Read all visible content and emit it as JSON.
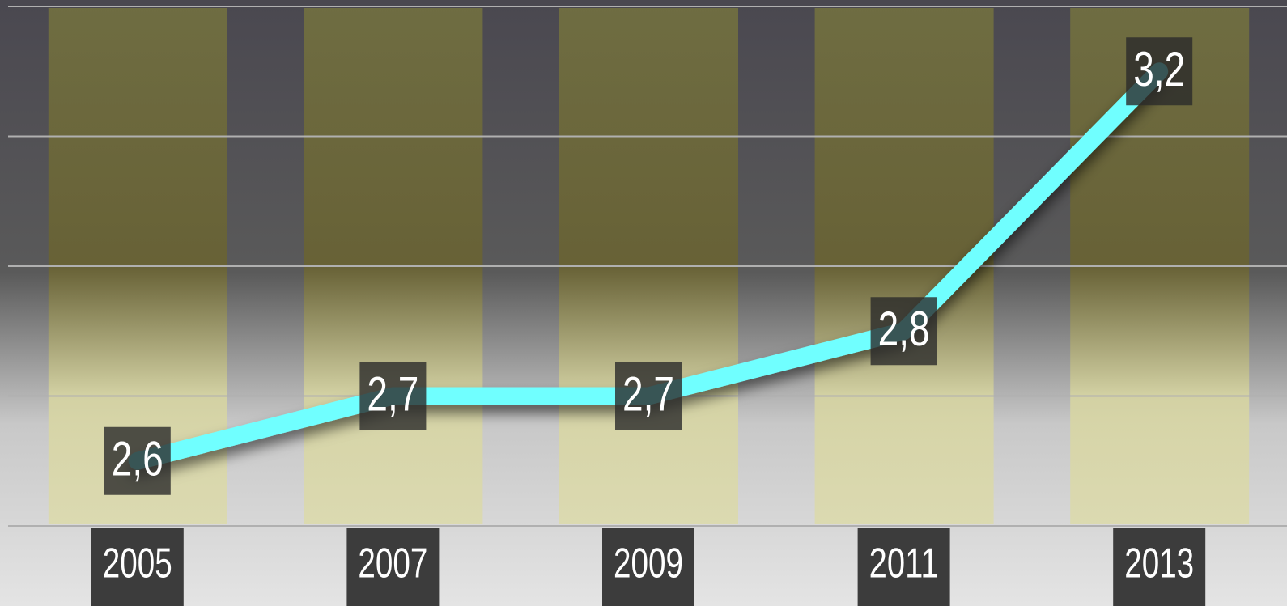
{
  "chart_data": {
    "type": "line",
    "categories": [
      "2005",
      "2007",
      "2009",
      "2011",
      "2013"
    ],
    "values": [
      2.6,
      2.7,
      2.7,
      2.8,
      3.2
    ],
    "value_labels": [
      "2,6",
      "2,7",
      "2,7",
      "2,8",
      "3,2"
    ],
    "color": "#70ffff",
    "ylim": [
      2.5,
      3.3
    ],
    "yticks": [
      2.5,
      2.7,
      2.9,
      3.1,
      3.3
    ],
    "grid": true
  }
}
